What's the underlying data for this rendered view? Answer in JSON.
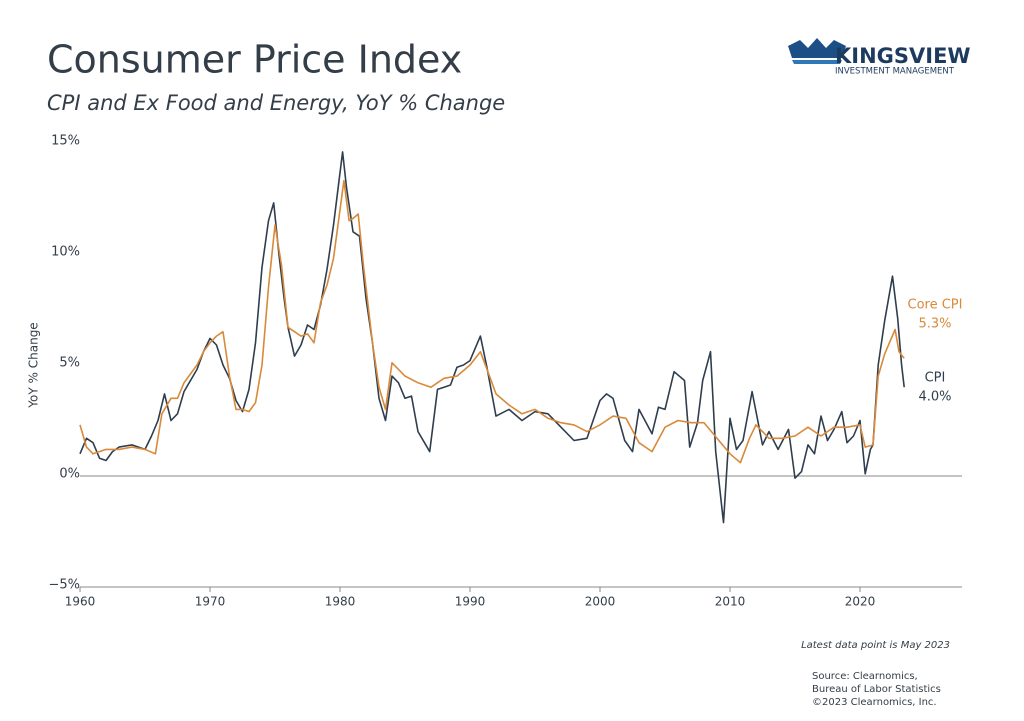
{
  "chart_data": {
    "type": "line",
    "title": "Consumer Price Index",
    "subtitle": "CPI and Ex Food and Energy, YoY % Change",
    "y_label": "YoY % Change",
    "note": "Latest data point is May 2023",
    "source": [
      "Source: Clearnomics,",
      "Bureau of Labor Statistics",
      "©2023 Clearnomics, Inc."
    ],
    "logo": {
      "name": "KINGSVIEW",
      "tagline": "INVESTMENT MANAGEMENT"
    },
    "xlim": [
      1960,
      2028
    ],
    "xticks": [
      1960,
      1970,
      1980,
      1990,
      2000,
      2010,
      2020
    ],
    "ylim": [
      -5,
      15
    ],
    "yticks": [
      {
        "value": -5,
        "label": "−5%"
      },
      {
        "value": 0,
        "label": "0%"
      },
      {
        "value": 5,
        "label": "5%"
      },
      {
        "value": 10,
        "label": "10%"
      },
      {
        "value": 15,
        "label": "15%"
      }
    ],
    "series": [
      {
        "name": "CPI",
        "color": "#2f3e4e",
        "end_label": "4.0%",
        "x": [
          1960,
          1960.5,
          1961,
          1961.5,
          1962,
          1962.5,
          1963,
          1964,
          1965,
          1965.5,
          1966,
          1966.5,
          1967,
          1967.5,
          1968,
          1969,
          1969.5,
          1970,
          1970.5,
          1971,
          1971.5,
          1972,
          1972.5,
          1973,
          1973.5,
          1974,
          1974.5,
          1974.9,
          1975.3,
          1975.7,
          1976,
          1976.5,
          1977,
          1977.5,
          1978,
          1978.5,
          1979,
          1979.5,
          1980.2,
          1980.5,
          1981,
          1981.5,
          1982,
          1982.5,
          1983,
          1983.5,
          1984,
          1984.5,
          1985,
          1985.5,
          1986,
          1986.5,
          1986.9,
          1987.5,
          1988,
          1988.5,
          1989,
          1989.5,
          1990,
          1990.8,
          1991.3,
          1992,
          1993,
          1994,
          1995,
          1996,
          1997,
          1998,
          1999,
          2000,
          2000.5,
          2001,
          2001.9,
          2002.5,
          2003,
          2004,
          2004.5,
          2005,
          2005.7,
          2006.5,
          2006.9,
          2007.5,
          2007.9,
          2008.5,
          2008.9,
          2009.5,
          2010,
          2010.5,
          2011,
          2011.7,
          2012.5,
          2013,
          2013.7,
          2014.5,
          2015,
          2015.5,
          2016,
          2016.5,
          2017,
          2017.5,
          2018,
          2018.6,
          2019,
          2019.5,
          2020,
          2020.4,
          2020.8,
          2021,
          2021.4,
          2021.9,
          2022.5,
          2022.9,
          2023.2,
          2023.4
        ],
        "values": [
          1.0,
          1.7,
          1.5,
          0.8,
          0.7,
          1.1,
          1.3,
          1.4,
          1.2,
          1.8,
          2.5,
          3.7,
          2.5,
          2.8,
          3.8,
          4.8,
          5.6,
          6.2,
          5.9,
          5.0,
          4.4,
          3.4,
          2.9,
          3.9,
          6.0,
          9.4,
          11.5,
          12.3,
          10.0,
          8.0,
          6.7,
          5.4,
          5.9,
          6.8,
          6.6,
          7.7,
          9.3,
          11.3,
          14.6,
          13.0,
          11.0,
          10.8,
          8.0,
          6.0,
          3.5,
          2.5,
          4.5,
          4.2,
          3.5,
          3.6,
          2.0,
          1.5,
          1.1,
          3.9,
          4.0,
          4.1,
          4.9,
          5.0,
          5.2,
          6.3,
          4.9,
          2.7,
          3.0,
          2.5,
          2.9,
          2.8,
          2.2,
          1.6,
          1.7,
          3.4,
          3.7,
          3.5,
          1.6,
          1.1,
          3.0,
          1.9,
          3.1,
          3.0,
          4.7,
          4.3,
          1.3,
          2.4,
          4.3,
          5.6,
          1.1,
          -2.1,
          2.6,
          1.2,
          1.6,
          3.8,
          1.4,
          2.0,
          1.2,
          2.1,
          -0.1,
          0.2,
          1.4,
          1.0,
          2.7,
          1.6,
          2.1,
          2.9,
          1.5,
          1.8,
          2.5,
          0.1,
          1.2,
          1.4,
          5.0,
          7.0,
          9.0,
          7.1,
          5.0,
          4.0
        ]
      },
      {
        "name": "Core CPI",
        "color": "#d9893a",
        "end_label": "5.3%",
        "x": [
          1960,
          1960.5,
          1961,
          1962,
          1963,
          1964,
          1965,
          1965.8,
          1966.3,
          1967,
          1967.5,
          1968,
          1969,
          1969.5,
          1970,
          1970.5,
          1971,
          1971.5,
          1972,
          1972.5,
          1973,
          1973.5,
          1974,
          1974.5,
          1975,
          1975.5,
          1976,
          1976.5,
          1977,
          1977.5,
          1978,
          1978.5,
          1979,
          1979.5,
          1980.3,
          1980.7,
          1981,
          1981.4,
          1981.8,
          1982,
          1982.5,
          1983,
          1983.5,
          1984,
          1985,
          1986,
          1987,
          1988,
          1989,
          1990,
          1990.8,
          1991.5,
          1992,
          1993,
          1994,
          1995,
          1996,
          1997,
          1998,
          1999,
          2000,
          2001,
          2002,
          2003,
          2004,
          2005,
          2006,
          2007,
          2008,
          2009,
          2010,
          2010.8,
          2011.5,
          2012,
          2013,
          2014,
          2015,
          2016,
          2017,
          2018,
          2019,
          2020,
          2020.4,
          2021,
          2021.4,
          2021.9,
          2022.7,
          2023,
          2023.4
        ],
        "values": [
          2.3,
          1.3,
          1.0,
          1.2,
          1.2,
          1.3,
          1.2,
          1.0,
          2.8,
          3.5,
          3.5,
          4.2,
          5.0,
          5.6,
          6.0,
          6.3,
          6.5,
          4.5,
          3.0,
          3.0,
          2.9,
          3.3,
          5.0,
          8.5,
          11.3,
          9.5,
          6.7,
          6.5,
          6.3,
          6.4,
          6.0,
          7.8,
          8.6,
          9.8,
          13.3,
          11.5,
          11.6,
          11.8,
          9.5,
          8.5,
          6.0,
          4.0,
          3.0,
          5.1,
          4.5,
          4.2,
          4.0,
          4.4,
          4.5,
          5.0,
          5.6,
          4.5,
          3.7,
          3.2,
          2.8,
          3.0,
          2.6,
          2.4,
          2.3,
          2.0,
          2.3,
          2.7,
          2.6,
          1.5,
          1.1,
          2.2,
          2.5,
          2.4,
          2.4,
          1.7,
          1.0,
          0.6,
          1.7,
          2.3,
          1.7,
          1.7,
          1.8,
          2.2,
          1.8,
          2.2,
          2.2,
          2.3,
          1.3,
          1.4,
          4.5,
          5.5,
          6.6,
          5.6,
          5.3
        ]
      }
    ]
  }
}
